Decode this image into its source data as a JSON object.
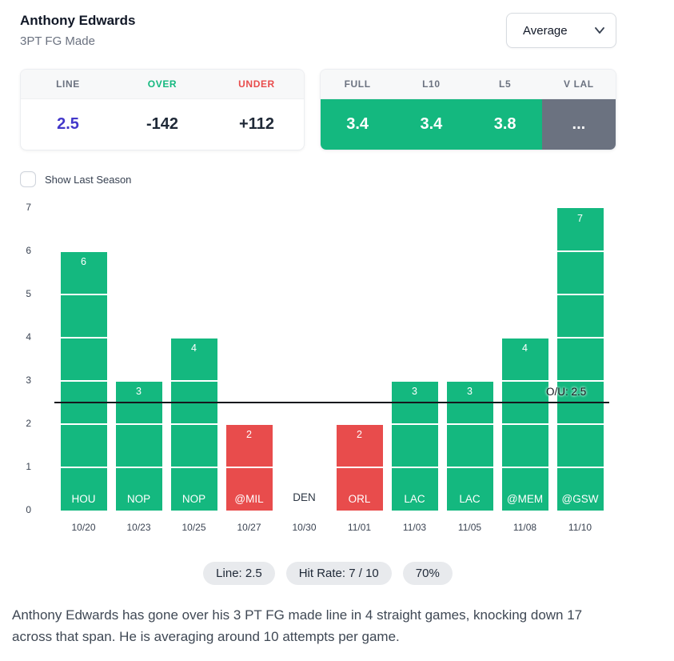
{
  "header": {
    "player_name": "Anthony Edwards",
    "stat_label": "3PT FG Made",
    "average_dropdown": "Average"
  },
  "line_card": {
    "headers": [
      "LINE",
      "OVER",
      "UNDER"
    ],
    "line": "2.5",
    "over": "-142",
    "under": "+112"
  },
  "splits_card": {
    "headers": [
      "FULL",
      "L10",
      "L5",
      "V LAL"
    ],
    "values": [
      "3.4",
      "3.4",
      "3.8",
      "..."
    ]
  },
  "show_last_season_label": "Show Last Season",
  "chart_data": {
    "type": "bar",
    "title": "",
    "xlabel": "",
    "ylabel": "",
    "ylim": [
      0,
      7
    ],
    "yticks": [
      0,
      1,
      2,
      3,
      4,
      5,
      6,
      7
    ],
    "x": [
      "10/20",
      "10/23",
      "10/25",
      "10/27",
      "10/30",
      "11/01",
      "11/03",
      "11/05",
      "11/08",
      "11/10"
    ],
    "opponents": [
      "HOU",
      "NOP",
      "NOP",
      "@MIL",
      "DEN",
      "ORL",
      "LAC",
      "LAC",
      "@MEM",
      "@GSW"
    ],
    "values": [
      6,
      3,
      4,
      2,
      0,
      2,
      3,
      3,
      4,
      7
    ],
    "over_under_line": 2.5,
    "ou_label": "O/U: 2.5",
    "colors": {
      "over": "#14b87f",
      "under": "#e84c4c"
    }
  },
  "summary_pills": [
    "Line: 2.5",
    "Hit Rate: 7 / 10",
    "70%"
  ],
  "footer_text": "Anthony Edwards has gone over his 3 PT FG made line in 4 straight games, knocking down 17 across that span. He is averaging around 10 attempts per game."
}
